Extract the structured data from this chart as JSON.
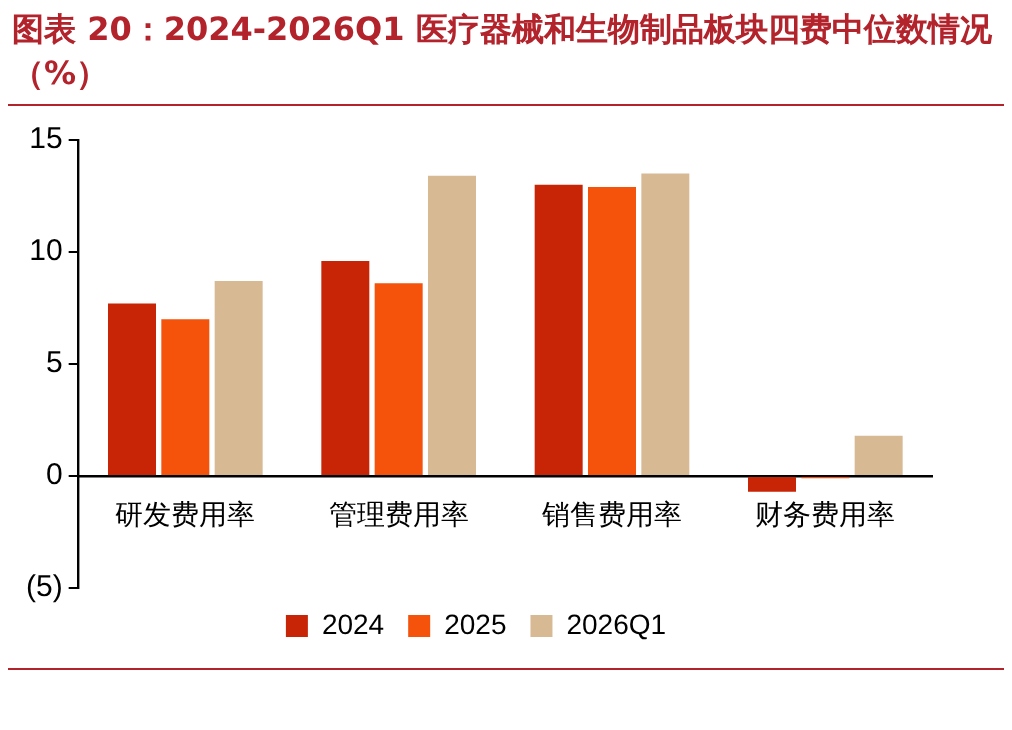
{
  "chart_data": {
    "type": "bar",
    "title": "图表 20：2024-2026Q1 医疗器械和生物制品板块四费中位数情况（%）",
    "categories": [
      "研发费用率",
      "管理费用率",
      "销售费用率",
      "财务费用率"
    ],
    "series": [
      {
        "name": "2024",
        "color": "#c82506",
        "values": [
          7.7,
          9.6,
          13.0,
          -0.7
        ]
      },
      {
        "name": "2025",
        "color": "#f5520b",
        "values": [
          7.0,
          8.6,
          12.9,
          -0.1
        ]
      },
      {
        "name": "2026Q1",
        "color": "#d7ba93",
        "values": [
          8.7,
          13.4,
          13.5,
          1.8
        ]
      }
    ],
    "ylim": [
      -5,
      15
    ],
    "yticks": [
      {
        "value": -5,
        "label": "(5)"
      },
      0,
      5,
      10,
      15
    ],
    "grid": false,
    "legend": "bottom"
  }
}
